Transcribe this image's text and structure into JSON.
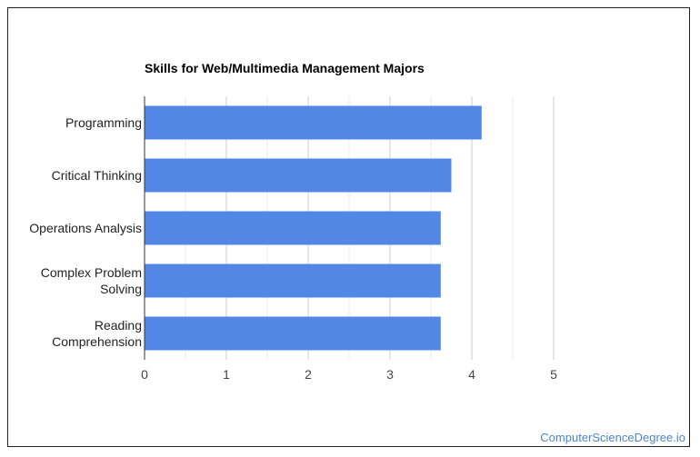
{
  "chart_data": {
    "type": "bar",
    "orientation": "horizontal",
    "title": "Skills for Web/Multimedia Management Majors",
    "categories": [
      "Programming",
      "Critical Thinking",
      "Operations Analysis",
      "Complex Problem Solving",
      "Reading Comprehension"
    ],
    "values": [
      4.12,
      3.75,
      3.62,
      3.62,
      3.62
    ],
    "xlim": [
      0,
      5
    ],
    "xticks": [
      "0",
      "1",
      "2",
      "3",
      "4",
      "5"
    ],
    "grid": true,
    "bar_color": "#5387e5"
  },
  "watermark": {
    "text": "ComputerScienceDegree.io",
    "color": "#4a86c8"
  }
}
